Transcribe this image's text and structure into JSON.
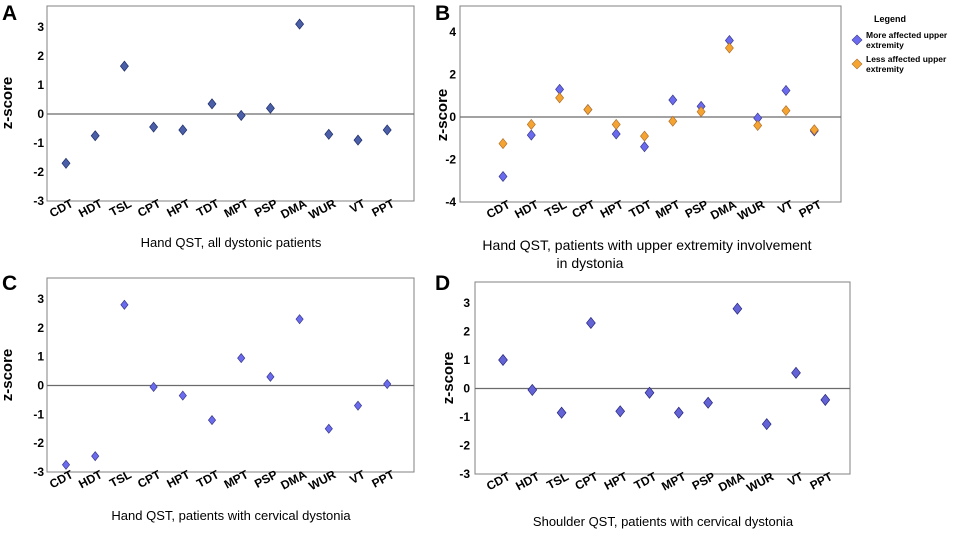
{
  "figure": {
    "legend": {
      "title": "Legend",
      "more_affected_line1": "More affected upper",
      "more_affected_line2": "extremity",
      "less_affected_line1": "Less affected  upper",
      "less_affected_line2": "extremity"
    },
    "colors": {
      "more_affected": "#6b6bf0",
      "less_affected": "#f5a432",
      "panel_a_marker": "#4a5fa8",
      "panel_d_marker": "#6363d6"
    }
  },
  "chart_data": [
    {
      "panel": "A",
      "type": "scatter",
      "title": "Hand QST, all dystonic patients",
      "xlabel": "Hand QST, all dystonic patients",
      "ylabel": "z-score",
      "categories": [
        "CDT",
        "HDT",
        "TSL",
        "CPT",
        "HPT",
        "TDT",
        "MPT",
        "PSP",
        "DMA",
        "WUR",
        "VT",
        "PPT"
      ],
      "ylim": [
        -3,
        3
      ],
      "yticks": [
        -3,
        -2,
        -1,
        0,
        1,
        2,
        3
      ],
      "series": [
        {
          "name": "All dystonic patients",
          "values": [
            -1.7,
            -0.75,
            1.65,
            -0.45,
            -0.55,
            0.35,
            -0.05,
            0.2,
            3.1,
            -0.7,
            -0.9,
            -0.55
          ]
        }
      ]
    },
    {
      "panel": "B",
      "type": "scatter",
      "title": "Hand QST, patients with upper extremity involvement in dystonia",
      "title_line1": "Hand QST, patients with upper extremity involvement",
      "title_line2": "in dystonia",
      "ylabel": "z-score",
      "categories": [
        "CDT",
        "HDT",
        "TSL",
        "CPT",
        "HPT",
        "TDT",
        "MPT",
        "PSP",
        "DMA",
        "WUR",
        "VT",
        "PPT"
      ],
      "ylim": [
        -4,
        4
      ],
      "yticks": [
        -4,
        -2,
        0,
        2,
        4
      ],
      "legend_position": "right",
      "series": [
        {
          "name": "More affected upper extremity",
          "values": [
            -2.8,
            -0.85,
            1.3,
            0.35,
            -0.8,
            -1.4,
            0.8,
            0.5,
            3.6,
            -0.05,
            1.25,
            -0.65
          ]
        },
        {
          "name": "Less affected upper extremity",
          "values": [
            -1.25,
            -0.35,
            0.9,
            0.35,
            -0.35,
            -0.9,
            -0.2,
            0.25,
            3.25,
            -0.4,
            0.3,
            -0.6
          ]
        }
      ]
    },
    {
      "panel": "C",
      "type": "scatter",
      "title": "Hand QST, patients with cervical dystonia",
      "ylabel": "z-score",
      "categories": [
        "CDT",
        "HDT",
        "TSL",
        "CPT",
        "HPT",
        "TDT",
        "MPT",
        "PSP",
        "DMA",
        "WUR",
        "VT",
        "PPT"
      ],
      "ylim": [
        -3,
        3
      ],
      "yticks": [
        -3,
        -2,
        -1,
        0,
        1,
        2,
        3
      ],
      "series": [
        {
          "name": "Cervical dystonia",
          "values": [
            -2.75,
            -2.45,
            2.8,
            -0.05,
            -0.35,
            -1.2,
            0.95,
            0.3,
            2.3,
            -1.5,
            -0.7,
            0.05
          ]
        }
      ]
    },
    {
      "panel": "D",
      "type": "scatter",
      "title": "Shoulder QST, patients with cervical dystonia",
      "ylabel": "z-score",
      "categories": [
        "CDT",
        "HDT",
        "TSL",
        "CPT",
        "HPT",
        "TDT",
        "MPT",
        "PSP",
        "DMA",
        "WUR",
        "VT",
        "PPT"
      ],
      "ylim": [
        -3,
        3
      ],
      "yticks": [
        -3,
        -2,
        -1,
        0,
        1,
        2,
        3
      ],
      "series": [
        {
          "name": "Cervical dystonia",
          "values": [
            1.0,
            -0.05,
            -0.85,
            2.3,
            -0.8,
            -0.15,
            -0.85,
            -0.5,
            2.8,
            -1.25,
            0.55,
            -0.4
          ]
        }
      ]
    }
  ]
}
